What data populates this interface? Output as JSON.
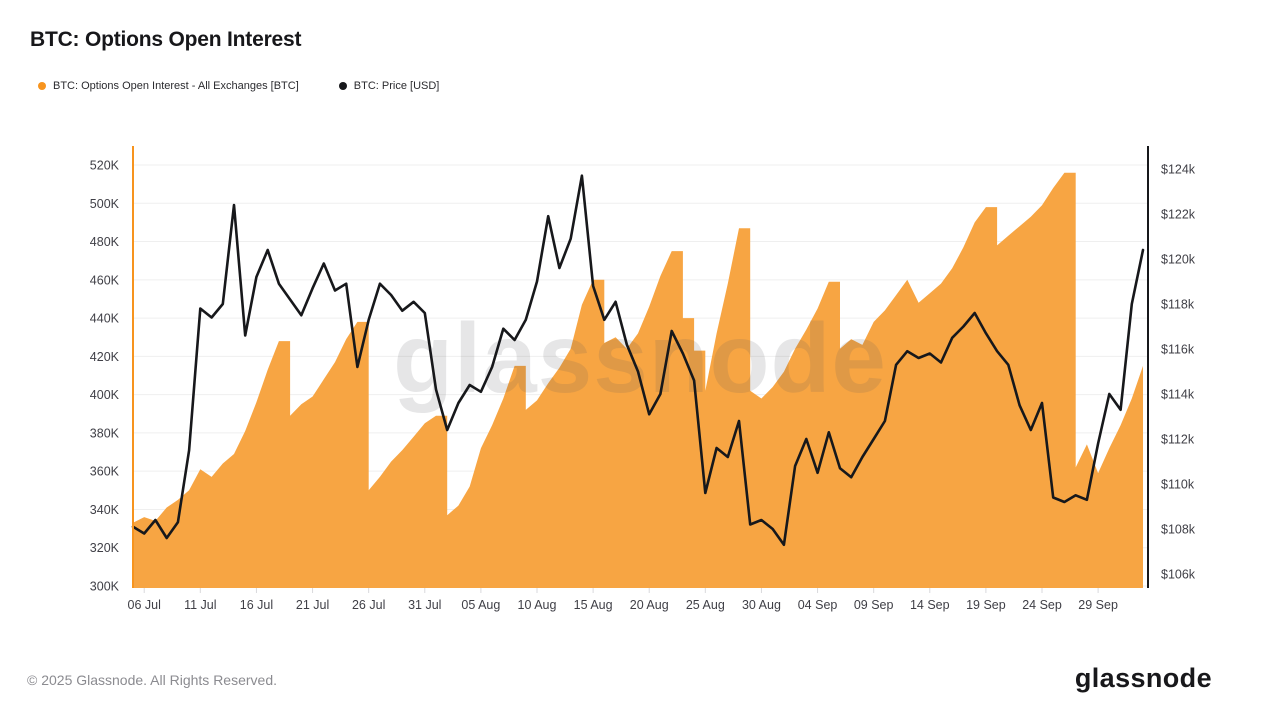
{
  "header": {
    "title": "BTC: Options Open Interest"
  },
  "legend": {
    "items": [
      {
        "label": "BTC: Options Open Interest - All Exchanges [BTC]",
        "color": "#F7941E"
      },
      {
        "label": "BTC: Price [USD]",
        "color": "#17181B"
      }
    ]
  },
  "watermark": {
    "text": "glassnode",
    "color": "#55565A"
  },
  "footer": {
    "copyright": "© 2025 Glassnode. All Rights Reserved.",
    "logo_text": "glassnode"
  },
  "chart_data": {
    "type": "area",
    "subtype": "area + line dual-axis time series",
    "title": "BTC: Options Open Interest",
    "x_unit": "day",
    "x_start": "05 Jul",
    "x_end": "03 Oct",
    "grid": "horizontal",
    "legend_position": "top-left",
    "x_tick_labels": [
      "06 Jul",
      "11 Jul",
      "16 Jul",
      "21 Jul",
      "26 Jul",
      "31 Jul",
      "05 Aug",
      "10 Aug",
      "15 Aug",
      "20 Aug",
      "25 Aug",
      "30 Aug",
      "04 Sep",
      "09 Sep",
      "14 Sep",
      "19 Sep",
      "24 Sep",
      "29 Sep"
    ],
    "x_tick_day_indices": [
      1,
      6,
      11,
      16,
      21,
      26,
      31,
      36,
      41,
      46,
      51,
      56,
      61,
      66,
      71,
      76,
      81,
      86
    ],
    "left_axis": {
      "ticks": [
        "520K",
        "500K",
        "480K",
        "460K",
        "440K",
        "420K",
        "400K",
        "380K",
        "360K",
        "340K",
        "320K",
        "300K"
      ],
      "range": [
        300,
        520
      ],
      "unit": "K BTC",
      "color": "#F7941E"
    },
    "right_axis": {
      "ticks": [
        "$124k",
        "$122k",
        "$120k",
        "$118k",
        "$116k",
        "$114k",
        "$112k",
        "$110k",
        "$108k",
        "$106k"
      ],
      "range": [
        106,
        124
      ],
      "unit": "USD thousands",
      "color": "#17181B"
    },
    "series": [
      {
        "name": "BTC: Options Open Interest - All Exchanges [BTC]",
        "type": "area",
        "axis": "left",
        "unit": "K BTC (estimated daily)",
        "color": "#F7A543",
        "values": [
          333,
          336,
          334,
          341,
          345,
          350,
          361,
          357,
          364,
          369,
          381,
          396,
          413,
          428,
          389,
          395,
          399,
          408,
          417,
          429,
          438,
          350,
          357,
          365,
          371,
          378,
          385,
          389,
          337,
          342,
          352,
          372,
          384,
          398,
          415,
          392,
          397,
          406,
          414,
          424,
          447,
          460,
          427,
          430,
          424,
          432,
          446,
          462,
          475,
          440,
          423,
          402,
          432,
          458,
          487,
          402,
          398,
          404,
          412,
          424,
          434,
          445,
          459,
          424,
          429,
          426,
          438,
          444,
          452,
          460,
          448,
          453,
          458,
          466,
          477,
          490,
          498,
          478,
          483,
          488,
          493,
          499,
          508,
          516,
          362,
          374,
          359,
          372,
          384,
          398,
          415
        ]
      },
      {
        "name": "BTC: Price [USD]",
        "type": "line",
        "axis": "right",
        "unit": "USD thousands (estimated daily)",
        "color": "#17181B",
        "values": [
          108.1,
          107.8,
          108.4,
          107.6,
          108.3,
          111.5,
          117.8,
          117.4,
          118.0,
          122.4,
          116.6,
          119.2,
          120.4,
          118.9,
          118.2,
          117.5,
          118.7,
          119.8,
          118.6,
          118.9,
          115.2,
          117.3,
          118.9,
          118.4,
          117.7,
          118.1,
          117.6,
          114.2,
          112.4,
          113.6,
          114.4,
          114.1,
          115.2,
          116.9,
          116.4,
          117.3,
          119.0,
          121.9,
          119.6,
          120.9,
          123.7,
          118.8,
          117.3,
          118.1,
          116.2,
          115.0,
          113.1,
          114.0,
          116.8,
          115.8,
          114.6,
          109.6,
          111.6,
          111.2,
          112.8,
          108.2,
          108.4,
          108.0,
          107.3,
          110.8,
          112.0,
          110.5,
          112.3,
          110.7,
          110.3,
          111.2,
          112.0,
          112.8,
          115.3,
          115.9,
          115.6,
          115.8,
          115.4,
          116.5,
          117.0,
          117.6,
          116.7,
          115.9,
          115.3,
          113.5,
          112.4,
          113.6,
          109.4,
          109.2,
          109.5,
          109.3,
          111.8,
          114.0,
          113.3,
          118.0,
          120.4
        ]
      }
    ]
  }
}
